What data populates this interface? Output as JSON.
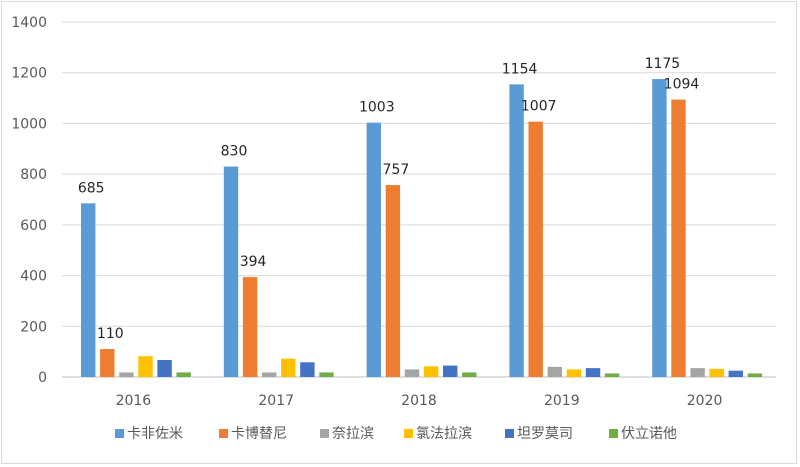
{
  "chart_data": {
    "type": "bar",
    "categories": [
      "2016",
      "2017",
      "2018",
      "2019",
      "2020"
    ],
    "series": [
      {
        "name": "卡非佐米",
        "color": "#5b9bd5",
        "values": [
          685,
          830,
          1003,
          1154,
          1175
        ],
        "labels": [
          "685",
          "830",
          "1003",
          "1154",
          "1175"
        ]
      },
      {
        "name": "卡博替尼",
        "color": "#ed7d31",
        "values": [
          110,
          394,
          757,
          1007,
          1094
        ],
        "labels": [
          "110",
          "394",
          "757",
          "1007",
          "1094"
        ]
      },
      {
        "name": "奈拉滨",
        "color": "#a5a5a5",
        "values": [
          18,
          18,
          30,
          40,
          35
        ]
      },
      {
        "name": "氯法拉滨",
        "color": "#ffc000",
        "values": [
          82,
          72,
          42,
          30,
          32
        ]
      },
      {
        "name": "坦罗莫司",
        "color": "#4472c4",
        "values": [
          67,
          58,
          45,
          35,
          25
        ]
      },
      {
        "name": "伏立诺他",
        "color": "#70ad47",
        "values": [
          18,
          18,
          18,
          14,
          14
        ]
      }
    ],
    "ylim": [
      0,
      1400
    ],
    "yticks": [
      "0",
      "200",
      "400",
      "600",
      "800",
      "1000",
      "1200",
      "1400"
    ],
    "grid": true,
    "legend": "bottom"
  }
}
